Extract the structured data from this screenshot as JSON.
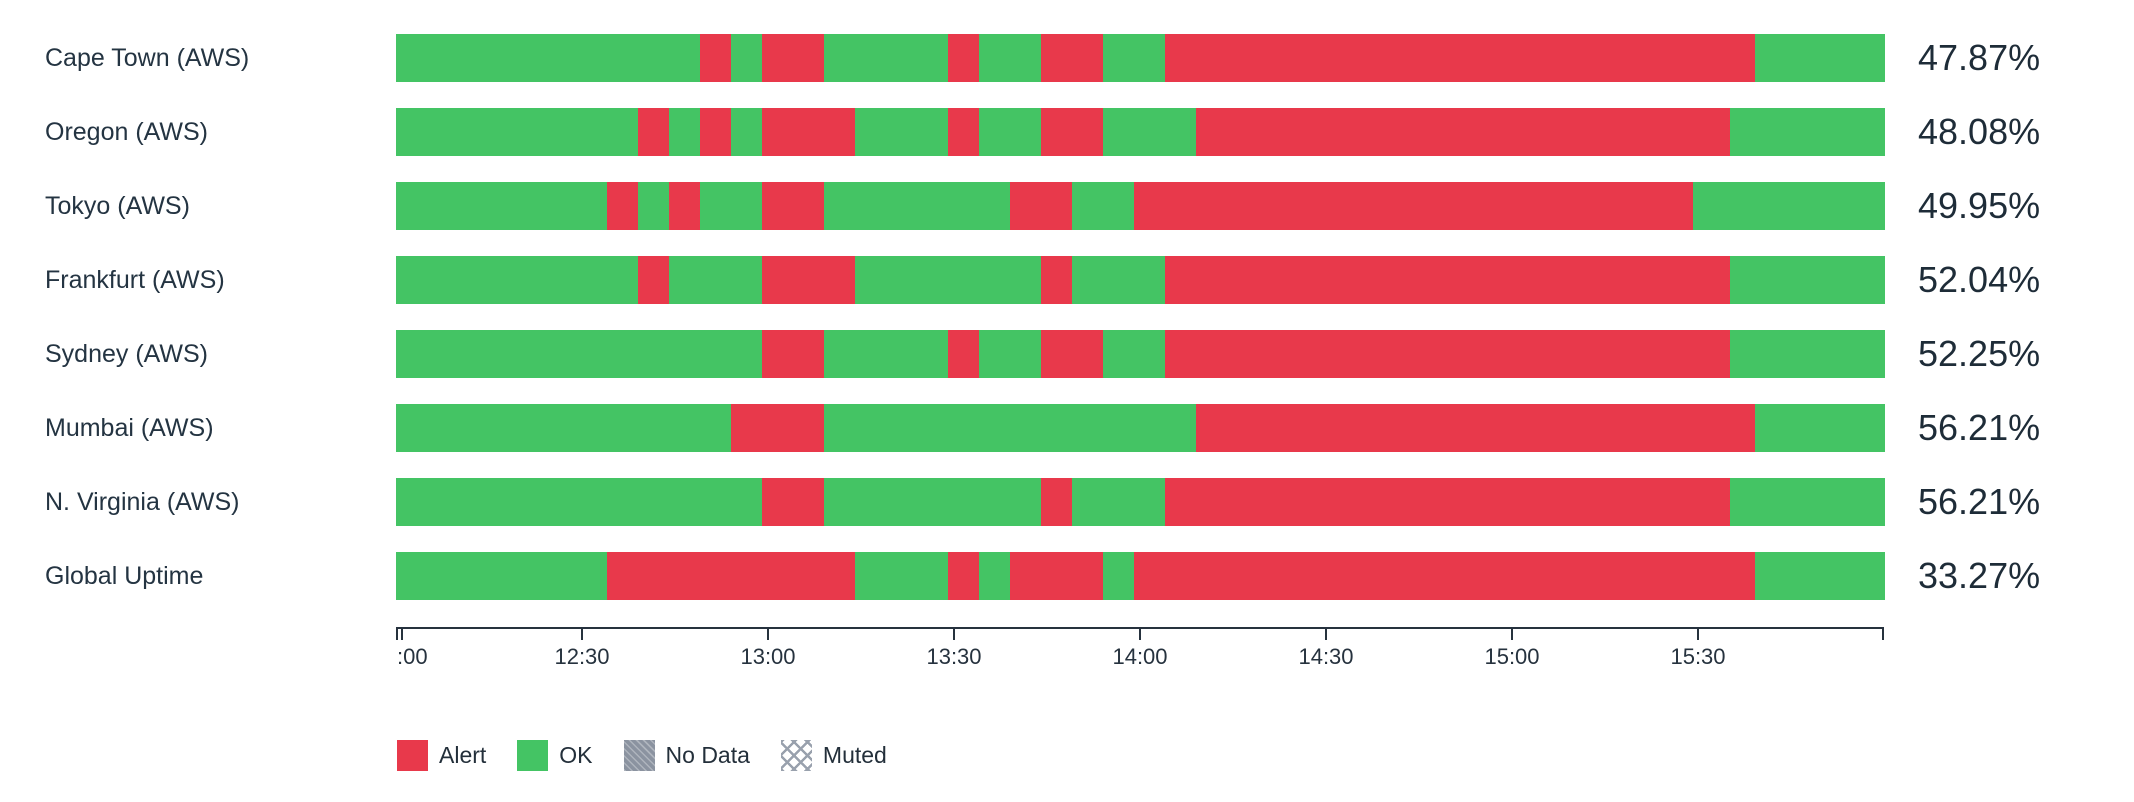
{
  "chart_data": {
    "type": "bar",
    "subtype": "status-timeline-horizontal",
    "title": "",
    "colors": {
      "ok": "#44C464",
      "alert": "#E8394B",
      "no_data": "#8B93A0",
      "muted_pattern": "#99A1AD",
      "text_dark": "#243442",
      "axis": "#26323E"
    },
    "x_axis": {
      "start_time": "12:00",
      "end_time": "16:00",
      "range_minutes": 240,
      "tick_minutes": [
        0,
        30,
        60,
        90,
        120,
        150,
        180,
        210
      ],
      "tick_labels": [
        ":00",
        "12:30",
        "13:00",
        "13:30",
        "14:00",
        "14:30",
        "15:00",
        "15:30"
      ]
    },
    "rows": [
      {
        "label": "Cape Town (AWS)",
        "uptime": "47.87%",
        "segments": [
          [
            "ok",
            0,
            49
          ],
          [
            "alert",
            49,
            54
          ],
          [
            "ok",
            54,
            59
          ],
          [
            "alert",
            59,
            69
          ],
          [
            "ok",
            69,
            89
          ],
          [
            "alert",
            89,
            94
          ],
          [
            "ok",
            94,
            104
          ],
          [
            "alert",
            104,
            114
          ],
          [
            "ok",
            114,
            124
          ],
          [
            "alert",
            124,
            219
          ],
          [
            "ok",
            219,
            240
          ]
        ]
      },
      {
        "label": "Oregon (AWS)",
        "uptime": "48.08%",
        "segments": [
          [
            "ok",
            0,
            39
          ],
          [
            "alert",
            39,
            44
          ],
          [
            "ok",
            44,
            49
          ],
          [
            "alert",
            49,
            54
          ],
          [
            "ok",
            54,
            59
          ],
          [
            "alert",
            59,
            74
          ],
          [
            "ok",
            74,
            89
          ],
          [
            "alert",
            89,
            94
          ],
          [
            "ok",
            94,
            104
          ],
          [
            "alert",
            104,
            114
          ],
          [
            "ok",
            114,
            129
          ],
          [
            "alert",
            129,
            215
          ],
          [
            "ok",
            215,
            240
          ]
        ]
      },
      {
        "label": "Tokyo (AWS)",
        "uptime": "49.95%",
        "segments": [
          [
            "ok",
            0,
            34
          ],
          [
            "alert",
            34,
            39
          ],
          [
            "ok",
            39,
            44
          ],
          [
            "alert",
            44,
            49
          ],
          [
            "ok",
            49,
            59
          ],
          [
            "alert",
            59,
            69
          ],
          [
            "ok",
            69,
            99
          ],
          [
            "alert",
            99,
            109
          ],
          [
            "ok",
            109,
            119
          ],
          [
            "alert",
            119,
            209
          ],
          [
            "ok",
            209,
            240
          ]
        ]
      },
      {
        "label": "Frankfurt (AWS)",
        "uptime": "52.04%",
        "segments": [
          [
            "ok",
            0,
            39
          ],
          [
            "alert",
            39,
            44
          ],
          [
            "ok",
            44,
            59
          ],
          [
            "alert",
            59,
            74
          ],
          [
            "ok",
            74,
            104
          ],
          [
            "alert",
            104,
            109
          ],
          [
            "ok",
            109,
            124
          ],
          [
            "alert",
            124,
            215
          ],
          [
            "ok",
            215,
            240
          ]
        ]
      },
      {
        "label": "Sydney (AWS)",
        "uptime": "52.25%",
        "segments": [
          [
            "ok",
            0,
            59
          ],
          [
            "alert",
            59,
            69
          ],
          [
            "ok",
            69,
            89
          ],
          [
            "alert",
            89,
            94
          ],
          [
            "ok",
            94,
            104
          ],
          [
            "alert",
            104,
            114
          ],
          [
            "ok",
            114,
            124
          ],
          [
            "alert",
            124,
            215
          ],
          [
            "ok",
            215,
            240
          ]
        ]
      },
      {
        "label": "Mumbai (AWS)",
        "uptime": "56.21%",
        "segments": [
          [
            "ok",
            0,
            54
          ],
          [
            "alert",
            54,
            69
          ],
          [
            "ok",
            69,
            129
          ],
          [
            "alert",
            129,
            219
          ],
          [
            "ok",
            219,
            240
          ]
        ]
      },
      {
        "label": "N. Virginia (AWS)",
        "uptime": "56.21%",
        "segments": [
          [
            "ok",
            0,
            59
          ],
          [
            "alert",
            59,
            69
          ],
          [
            "ok",
            69,
            104
          ],
          [
            "alert",
            104,
            109
          ],
          [
            "ok",
            109,
            124
          ],
          [
            "alert",
            124,
            215
          ],
          [
            "ok",
            215,
            240
          ]
        ]
      },
      {
        "label": "Global Uptime",
        "uptime": "33.27%",
        "segments": [
          [
            "ok",
            0,
            34
          ],
          [
            "alert",
            34,
            74
          ],
          [
            "ok",
            74,
            89
          ],
          [
            "alert",
            89,
            94
          ],
          [
            "ok",
            94,
            99
          ],
          [
            "alert",
            99,
            114
          ],
          [
            "ok",
            114,
            119
          ],
          [
            "alert",
            119,
            219
          ],
          [
            "ok",
            219,
            240
          ]
        ]
      }
    ],
    "legend": [
      {
        "label": "Alert",
        "swatch": "solid",
        "color": "#E8394B"
      },
      {
        "label": "OK",
        "swatch": "solid",
        "color": "#44C464"
      },
      {
        "label": "No Data",
        "swatch": "textured",
        "color": "#8B93A0"
      },
      {
        "label": "Muted",
        "swatch": "crosshatch",
        "color": "#99A1AD"
      }
    ]
  }
}
